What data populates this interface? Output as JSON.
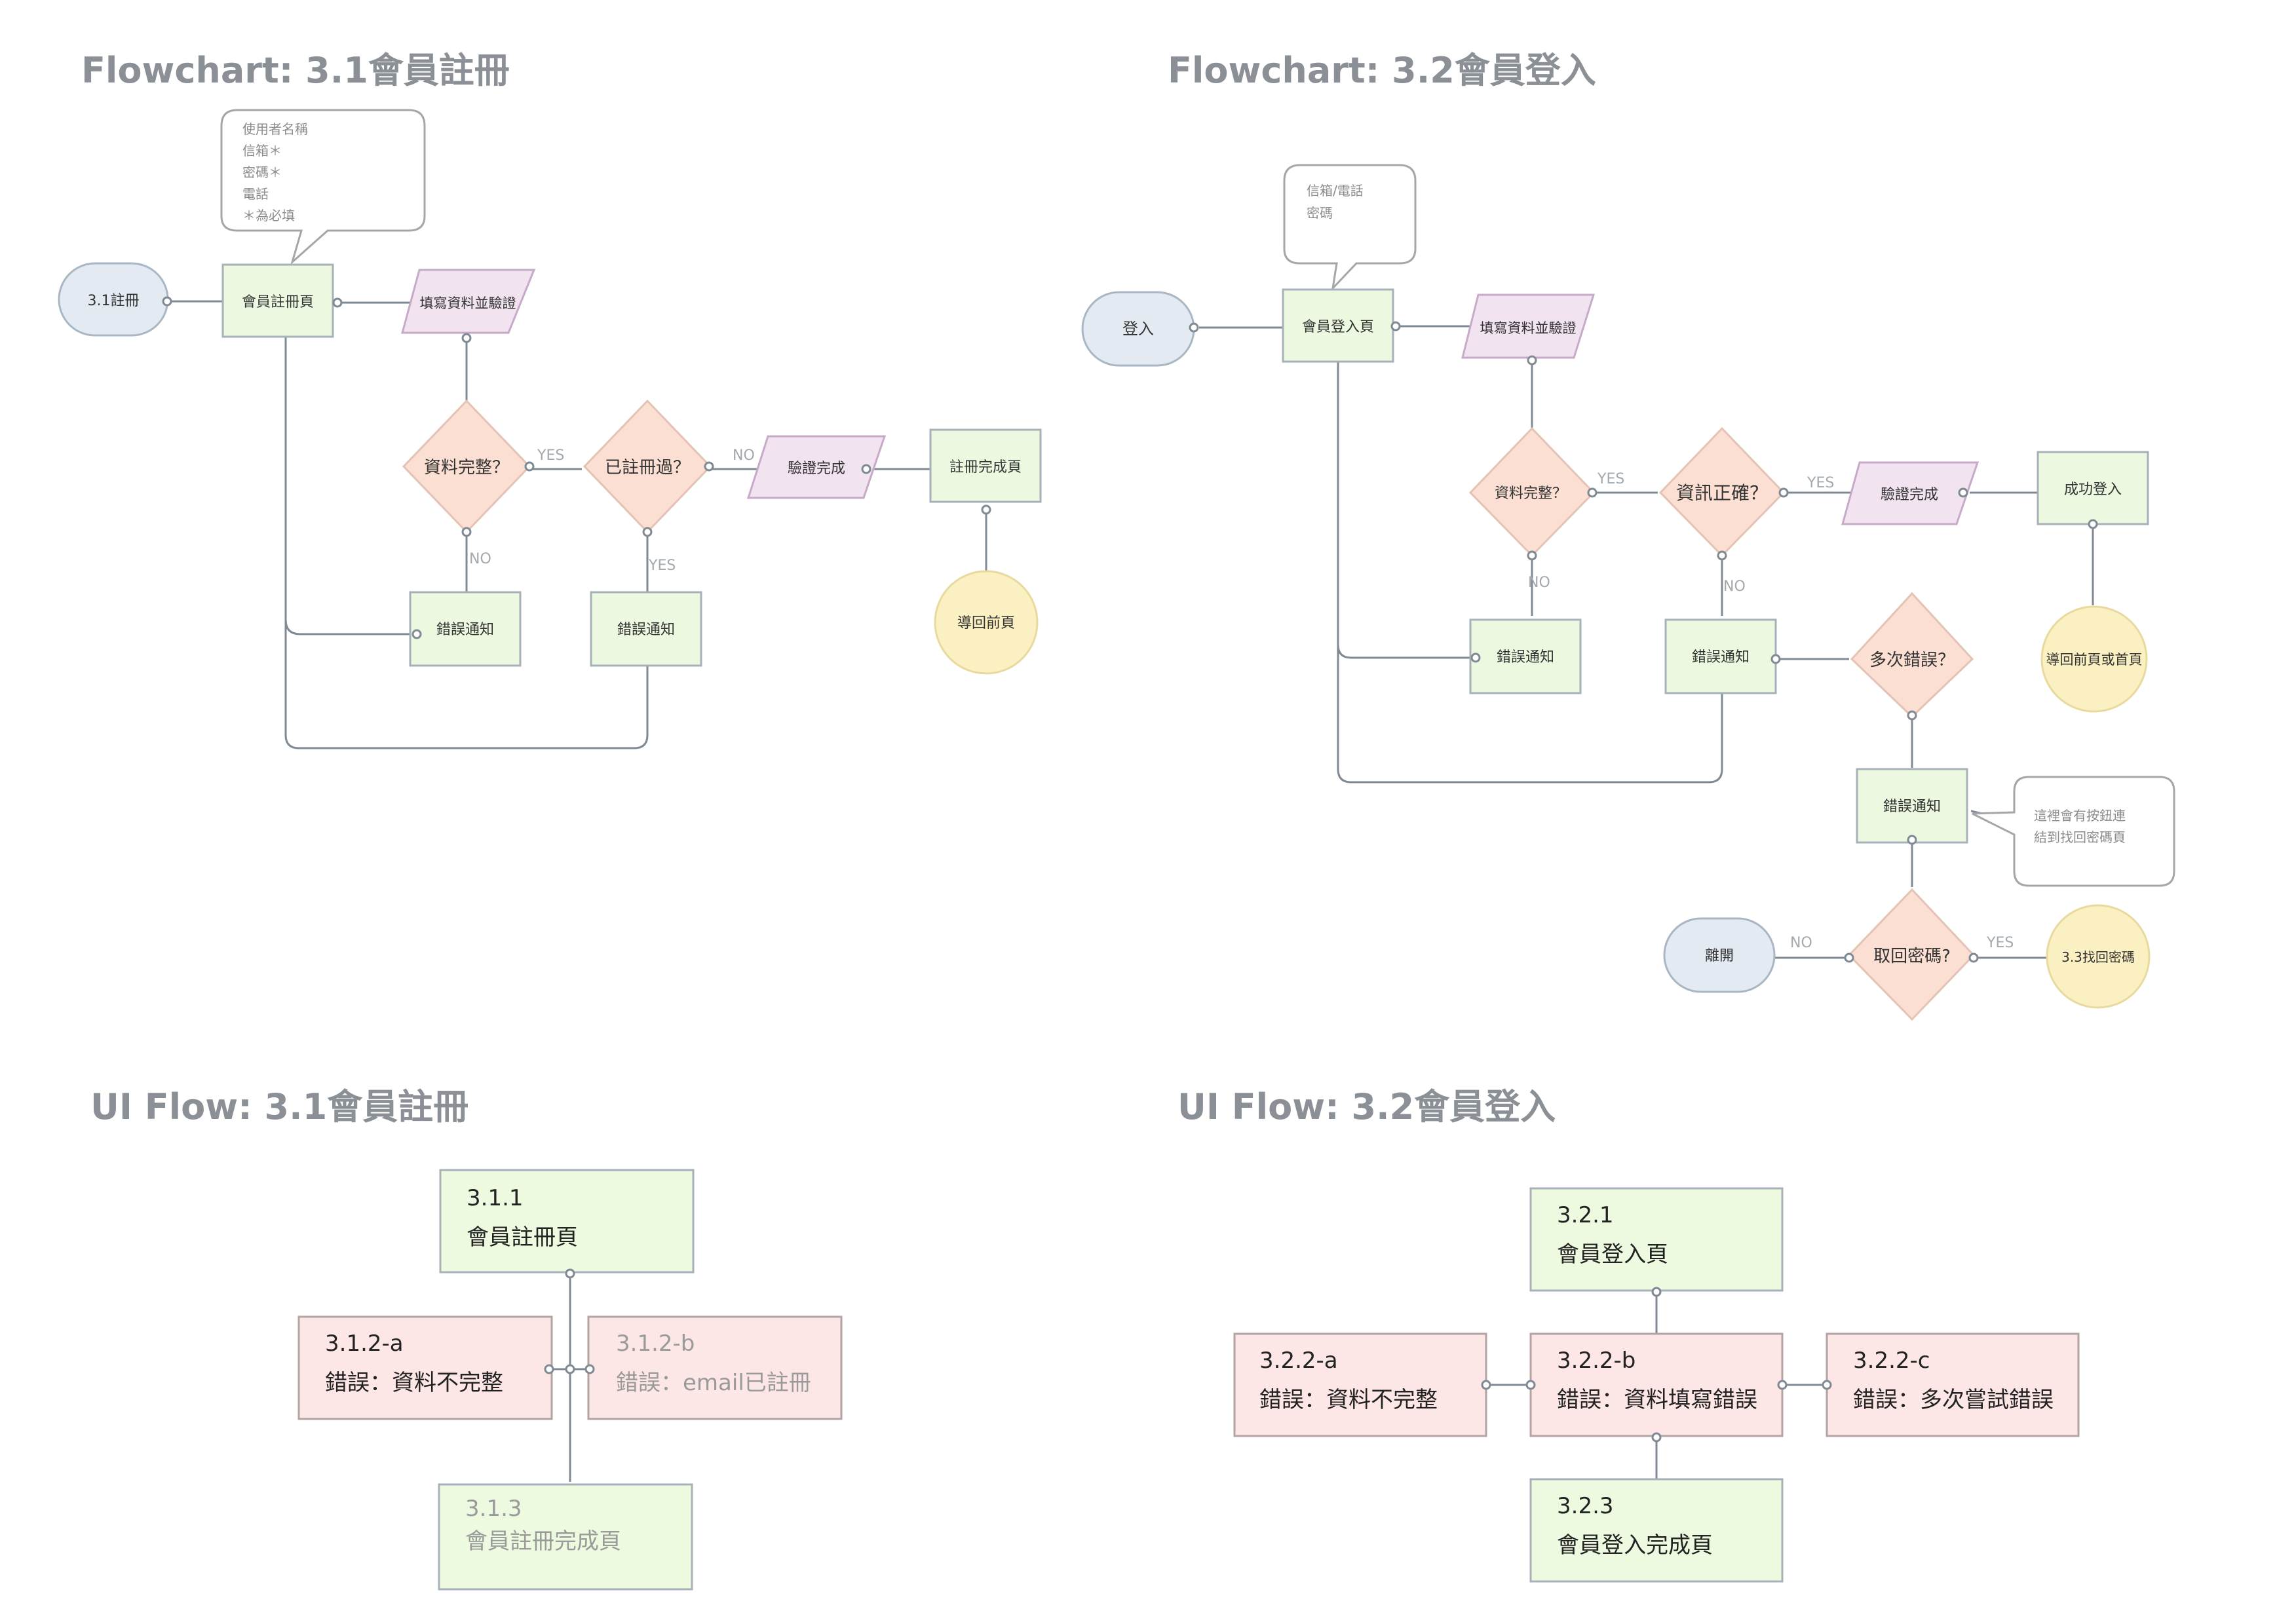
{
  "titles": {
    "fc1": "Flowchart: 3.1會員註冊",
    "fc2": "Flowchart: 3.2會員登入",
    "ui1": "UI Flow: 3.1會員註冊",
    "ui2": "UI Flow: 3.2會員登入"
  },
  "fc1": {
    "note": [
      "使用者名稱",
      "信箱＊",
      "密碼＊",
      "電話",
      "＊為必填"
    ],
    "start": "3.1註冊",
    "page": "會員註冊頁",
    "input": "填寫資料並驗證",
    "check_complete": "資料完整？",
    "check_registered": "已註冊過？",
    "verify_done": "驗證完成",
    "done_page": "註冊完成頁",
    "back": "導回前頁",
    "error1": "錯誤通知",
    "error2": "錯誤通知",
    "yes1": "YES",
    "no1": "NO",
    "no2": "NO",
    "yes2": "YES"
  },
  "fc2": {
    "note": [
      "信箱/電話",
      "密碼"
    ],
    "start": "登入",
    "page": "會員登入頁",
    "input": "填寫資料並驗證",
    "check_complete": "資料完整？",
    "check_correct": "資訊正確？",
    "verify_done": "驗證完成",
    "success": "成功登入",
    "back": "導回前頁或首頁",
    "error1": "錯誤通知",
    "error2": "錯誤通知",
    "multi": "多次錯誤？",
    "error3": "錯誤通知",
    "note2": [
      "這裡會有按鈕連",
      "結到找回密碼頁"
    ],
    "recover": "取回密碼?",
    "leave": "離開",
    "find_pw": "3.3找回密碼",
    "yes1": "YES",
    "yes2": "YES",
    "no1": "NO",
    "no2": "NO",
    "no3": "NO",
    "yes3": "YES"
  },
  "ui1": {
    "top": {
      "code": "3.1.1",
      "name": "會員註冊頁"
    },
    "err_a": {
      "code": "3.1.2-a",
      "name": "錯誤：資料不完整"
    },
    "err_b": {
      "code": "3.1.2-b",
      "name": "錯誤：email已註冊"
    },
    "bottom": {
      "code": "3.1.3",
      "name": "會員註冊完成頁"
    }
  },
  "ui2": {
    "top": {
      "code": "3.2.1",
      "name": "會員登入頁"
    },
    "err_a": {
      "code": "3.2.2-a",
      "name": "錯誤：資料不完整"
    },
    "err_b": {
      "code": "3.2.2-b",
      "name": "錯誤：資料填寫錯誤"
    },
    "err_c": {
      "code": "3.2.2-c",
      "name": "錯誤：多次嘗試錯誤"
    },
    "bottom": {
      "code": "3.2.3",
      "name": "會員登入完成頁"
    }
  },
  "colors": {
    "terminal": "#e4eaf1",
    "process": "#ecf8e0",
    "io": "#f2e3f1",
    "decision": "#fbdfd2",
    "endpoint": "#fbf0c1",
    "error_screen": "#fde6e6",
    "title": "#8a9096",
    "connector": "#7f8a94"
  }
}
